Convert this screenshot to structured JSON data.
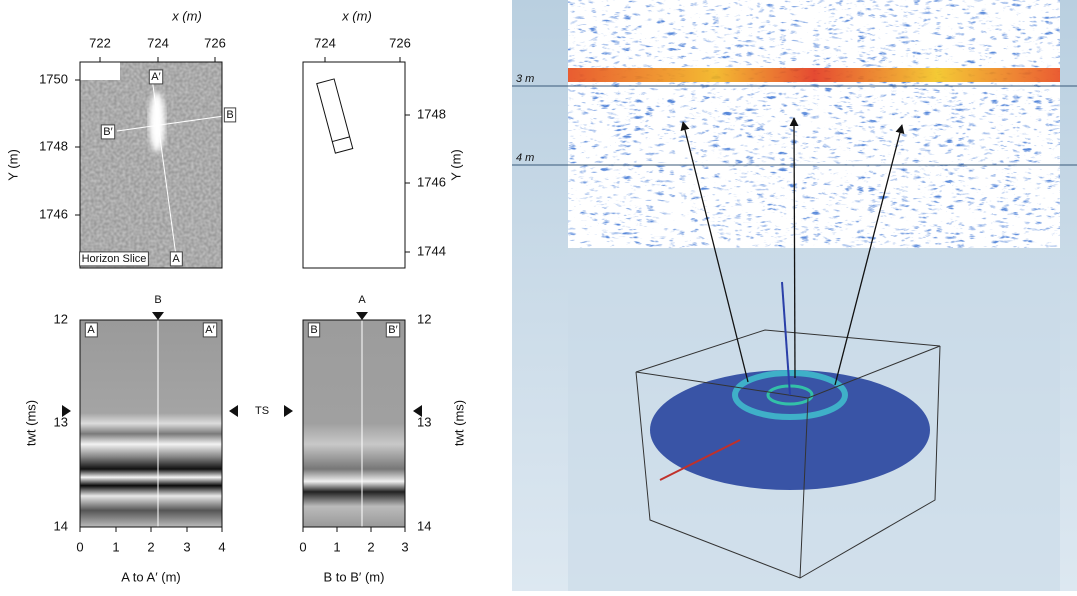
{
  "horizon_slice": {
    "x_label": "x (m)",
    "x_ticks": [
      722,
      724,
      726
    ],
    "y_label": "Y (m)",
    "y_ticks": [
      1750,
      1748,
      1746
    ],
    "labels": [
      "A′",
      "B",
      "B′",
      "Horizon Slice",
      "A"
    ]
  },
  "outline_map": {
    "x_label": "x (m)",
    "x_ticks": [
      724,
      726
    ],
    "y_label": "Y (m)",
    "y_ticks": [
      1748,
      1746,
      1744
    ]
  },
  "section_a": {
    "y_label": "twt (ms)",
    "y_ticks": [
      12,
      13,
      14
    ],
    "x_ticks": [
      0,
      1,
      2,
      3,
      4
    ],
    "x_label": "A to A′ (m)",
    "start": "A",
    "end": "A′",
    "marker": "B"
  },
  "ts_label": "TS",
  "section_b": {
    "y_label": "twt (ms)",
    "y_ticks": [
      12,
      13,
      14
    ],
    "x_ticks": [
      0,
      1,
      2,
      3
    ],
    "x_label": "B to B′ (m)",
    "start": "B",
    "end": "B′",
    "marker": "A"
  },
  "radar_volume": {
    "depth_labels": [
      "3 m",
      "4 m"
    ]
  }
}
